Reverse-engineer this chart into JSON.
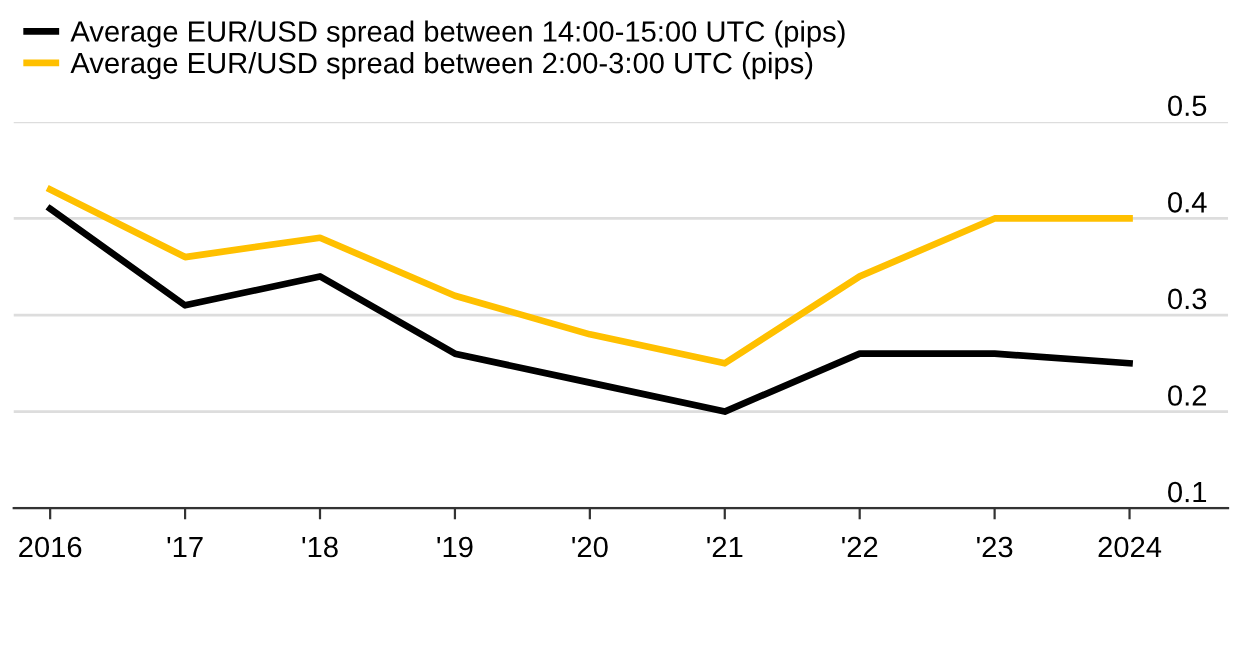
{
  "chart_data": {
    "type": "line",
    "x": [
      2016,
      2017,
      2018,
      2019,
      2020,
      2021,
      2022,
      2023,
      2024
    ],
    "series": [
      {
        "name": "Average EUR/USD spread between 14:00-15:00 UTC (pips)",
        "color": "#000000",
        "values": [
          0.41,
          0.31,
          0.34,
          0.26,
          0.23,
          0.2,
          0.26,
          0.26,
          0.25
        ]
      },
      {
        "name": "Average EUR/USD spread between 2:00-3:00 UTC (pips)",
        "color": "#ffc000",
        "values": [
          0.43,
          0.36,
          0.38,
          0.32,
          0.28,
          0.25,
          0.34,
          0.4,
          0.4
        ]
      }
    ],
    "xlim": [
      2015.73,
      2024.73
    ],
    "xticks": [
      {
        "value": 2016,
        "label": "2016"
      },
      {
        "value": 2017,
        "label": "'17"
      },
      {
        "value": 2018,
        "label": "'18"
      },
      {
        "value": 2019,
        "label": "'19"
      },
      {
        "value": 2020,
        "label": "'20"
      },
      {
        "value": 2021,
        "label": "'21"
      },
      {
        "value": 2022,
        "label": "'22"
      },
      {
        "value": 2023,
        "label": "'23"
      },
      {
        "value": 2024,
        "label": "2024"
      }
    ],
    "ylim": [
      0.1,
      0.5
    ],
    "yticks": [
      0.1,
      0.2,
      0.3,
      0.4,
      0.5
    ],
    "grid": "y",
    "legend": "top left",
    "marker": "none",
    "line_style": "solid"
  }
}
